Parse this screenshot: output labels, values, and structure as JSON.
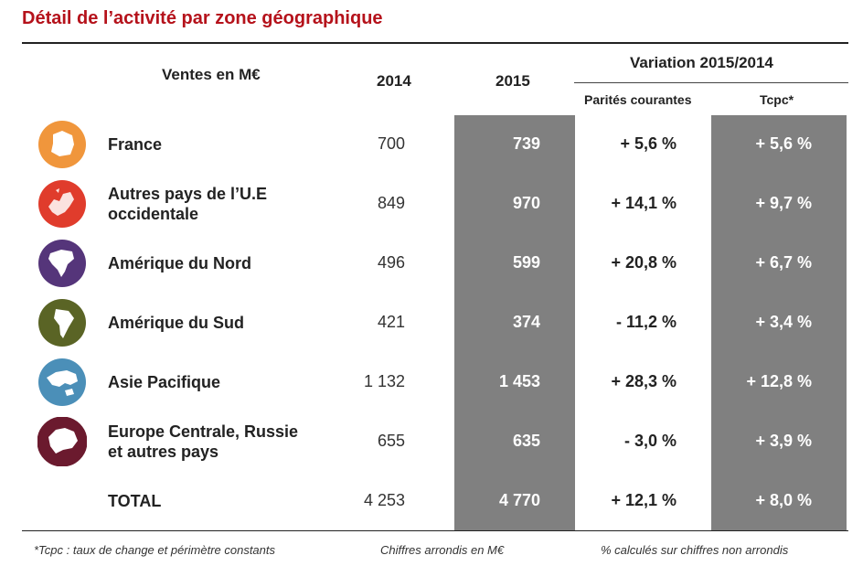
{
  "title": "Détail de l’activité par zone géographique",
  "header": {
    "ventes": "Ventes en M€",
    "y2014": "2014",
    "y2015": "2015",
    "variation": "Variation 2015/2014",
    "parites": "Parités courantes",
    "tcpc": "Tcpc*"
  },
  "rows": [
    {
      "zone": "France",
      "icon": "france-map-icon",
      "icon_color": "#f0963c",
      "v2014": "700",
      "v2015": "739",
      "parites": "+ 5,6 %",
      "tcpc": "+ 5,6 %"
    },
    {
      "zone_line1": "Autres pays de l’U.E",
      "zone_line2": "occidentale",
      "icon": "europe-map-icon",
      "icon_color": "#e03c2c",
      "v2014": "849",
      "v2015": "970",
      "parites": "+ 14,1 %",
      "tcpc": "+ 9,7 %"
    },
    {
      "zone": "Amérique du Nord",
      "icon": "north-america-map-icon",
      "icon_color": "#55357a",
      "v2014": "496",
      "v2015": "599",
      "parites": "+ 20,8 %",
      "tcpc": "+ 6,7 %"
    },
    {
      "zone": "Amérique du Sud",
      "icon": "south-america-map-icon",
      "icon_color": "#5a6425",
      "v2014": "421",
      "v2015": "374",
      "parites": "- 11,2 %",
      "tcpc": "+ 3,4 %"
    },
    {
      "zone": "Asie Pacifique",
      "icon": "asia-pacific-map-icon",
      "icon_color": "#4b8fb8",
      "v2014": "1 132",
      "v2015": "1 453",
      "parites": "+ 28,3 %",
      "tcpc": "+ 12,8 %"
    },
    {
      "zone_line1": "Europe Centrale, Russie",
      "zone_line2": "et autres pays",
      "icon": "russia-map-icon",
      "icon_color": "#6b1a2e",
      "v2014": "655",
      "v2015": "635",
      "parites": "- 3,0 %",
      "tcpc": "+ 3,9 %"
    },
    {
      "zone": "TOTAL",
      "v2014": "4 253",
      "v2015": "4 770",
      "parites": "+ 12,1 %",
      "tcpc": "+ 8,0 %"
    }
  ],
  "footer": {
    "note1": "*Tcpc : taux de change et périmètre constants",
    "note2": "Chiffres arrondis en M€",
    "note3": "% calculés sur chiffres non arrondis"
  },
  "colors": {
    "title": "#b5121b",
    "gray_column": "#808080"
  }
}
